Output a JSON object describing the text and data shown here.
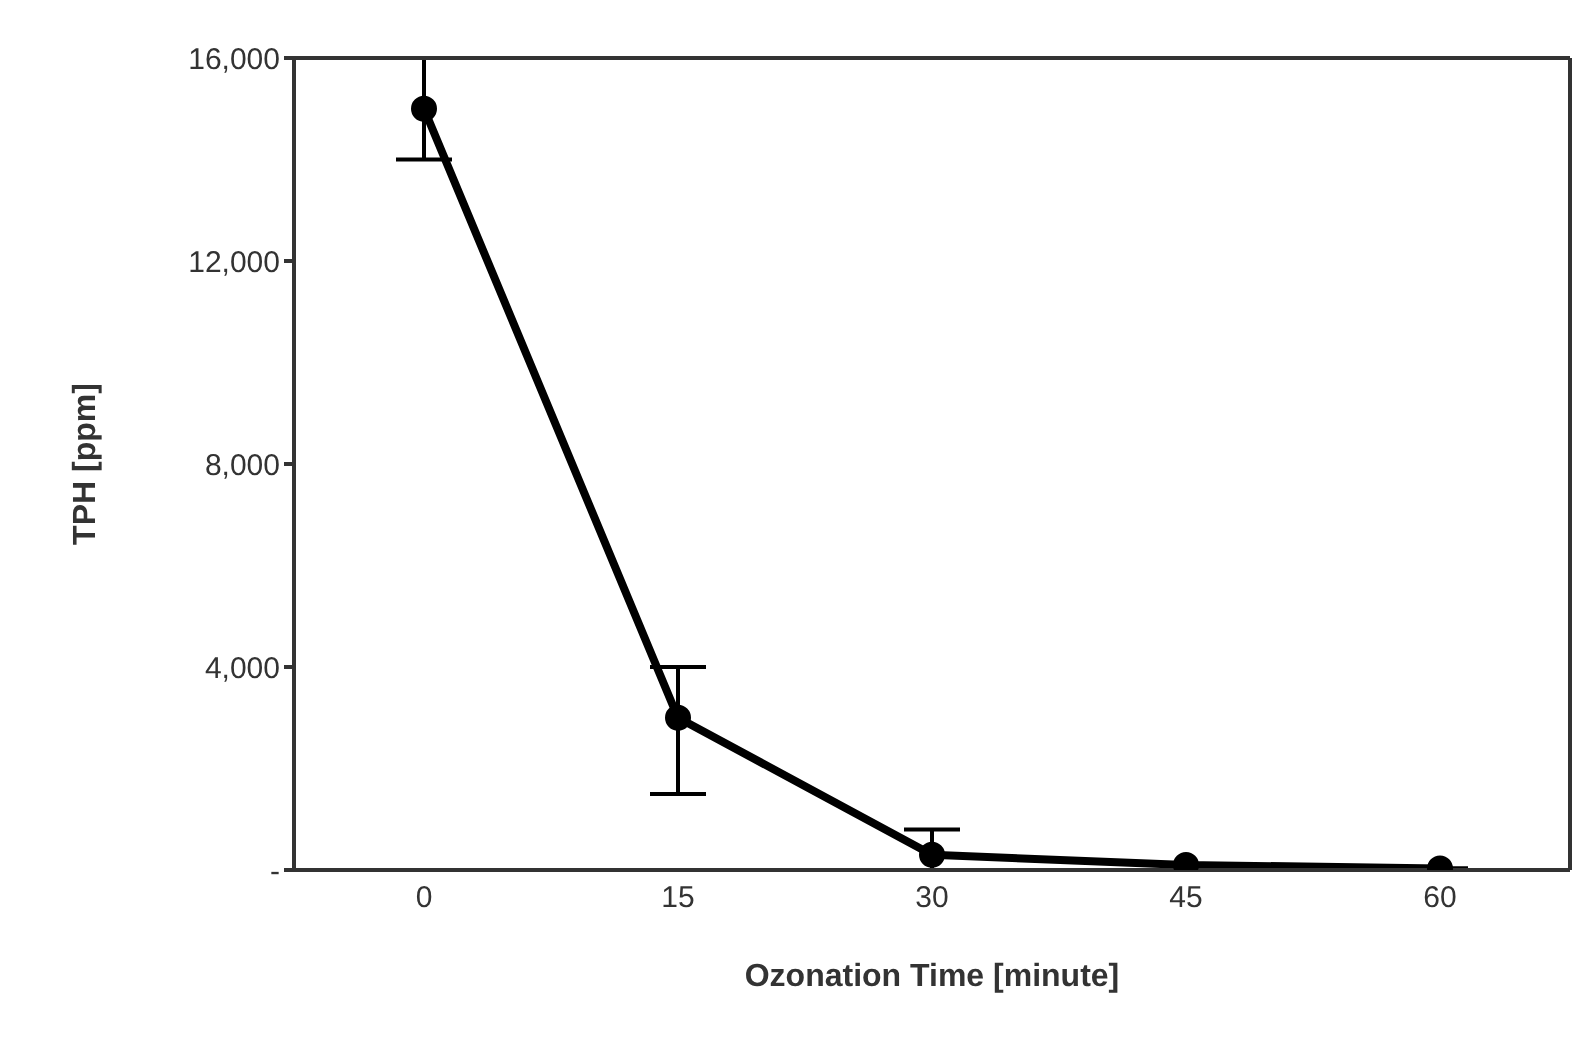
{
  "chart_data": {
    "type": "line",
    "xlabel": "Ozonation Time [minute]",
    "ylabel": "TPH [ppm]",
    "categories": [
      "0",
      "15",
      "30",
      "45",
      "60"
    ],
    "series": [
      {
        "color": "#000000",
        "values": [
          15000,
          3000,
          300,
          100,
          30
        ],
        "errors": [
          1000,
          [
            1500,
            4000
          ],
          [
            0,
            800
          ],
          null,
          null
        ]
      }
    ],
    "ylim": [
      0,
      16000
    ],
    "yticks": [
      {
        "value": 0,
        "label": "-"
      },
      {
        "value": 4000,
        "label": "4,000"
      },
      {
        "value": 8000,
        "label": "8,000"
      },
      {
        "value": 12000,
        "label": "12,000"
      },
      {
        "value": 16000,
        "label": "16,000"
      }
    ],
    "grid": false,
    "marker": "circle",
    "line_style": "solid"
  }
}
